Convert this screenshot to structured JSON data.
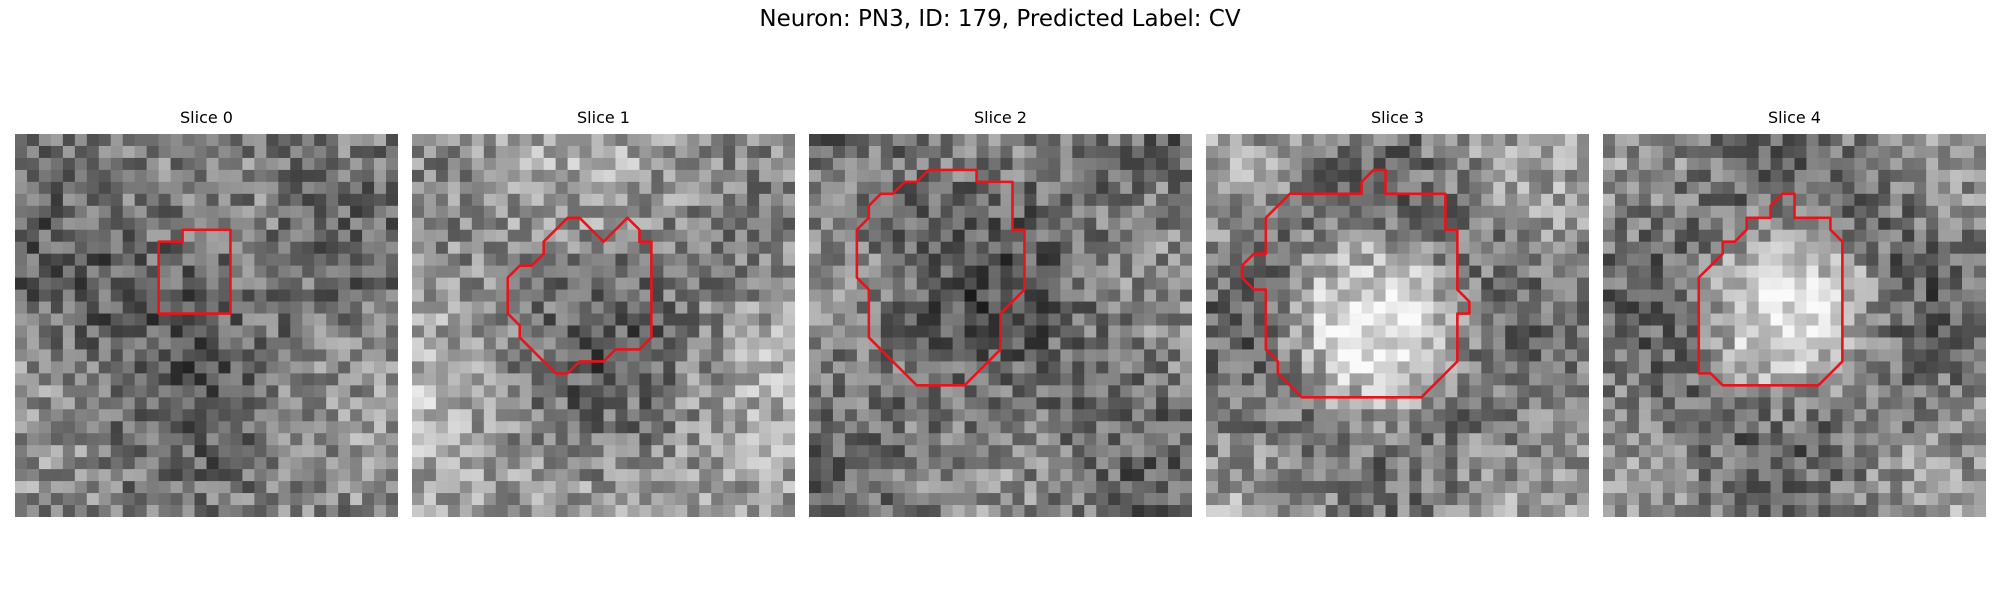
{
  "figure": {
    "title": "Neuron: PN3, ID: 179, Predicted Label: CV"
  },
  "panels": [
    {
      "title": "Slice 0"
    },
    {
      "title": "Slice 1"
    },
    {
      "title": "Slice 2"
    },
    {
      "title": "Slice 3"
    },
    {
      "title": "Slice 4"
    }
  ],
  "style": {
    "contour_color": "#e8141b",
    "colormap": "gray"
  }
}
